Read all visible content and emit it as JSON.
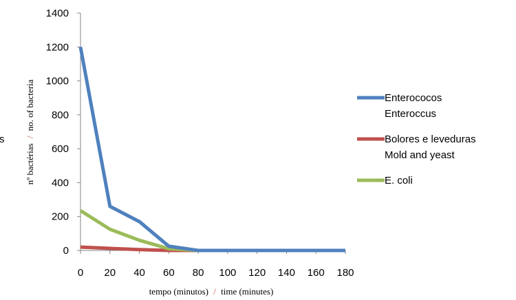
{
  "chart_data": {
    "type": "line",
    "x": [
      0,
      20,
      40,
      60,
      80,
      100,
      120,
      140,
      160,
      180
    ],
    "series": [
      {
        "name_line1": "Enterococos",
        "name_line2": "Enteroccus",
        "color": "#4f81bd",
        "values": [
          1200,
          260,
          170,
          25,
          0,
          0,
          0,
          0,
          0,
          0
        ]
      },
      {
        "name_line1": "Bolores e leveduras",
        "name_line2": "Mold and yeast",
        "color": "#c0504d",
        "values": [
          20,
          12,
          5,
          0,
          0,
          0,
          0,
          0,
          0,
          0
        ]
      },
      {
        "name_line1": "E. coli",
        "name_line2": "",
        "color": "#9bbb59",
        "values": [
          235,
          125,
          60,
          10,
          0,
          0,
          0,
          0,
          0,
          0
        ]
      }
    ],
    "xlabel_pt": "tempo (minutos)",
    "xlabel_sep": "/",
    "xlabel_en": "time (minutes)",
    "ylabel_pt": "nº bactérias",
    "ylabel_sep": "/",
    "ylabel_en": "no. of bacteria",
    "ylabel_clip": "s",
    "ylim": [
      0,
      1400
    ],
    "yticks": [
      0,
      200,
      400,
      600,
      800,
      1000,
      1200,
      1400
    ],
    "xticks": [
      0,
      20,
      40,
      60,
      80,
      100,
      120,
      140,
      160,
      180
    ],
    "legend_position": "right",
    "grid": false
  }
}
